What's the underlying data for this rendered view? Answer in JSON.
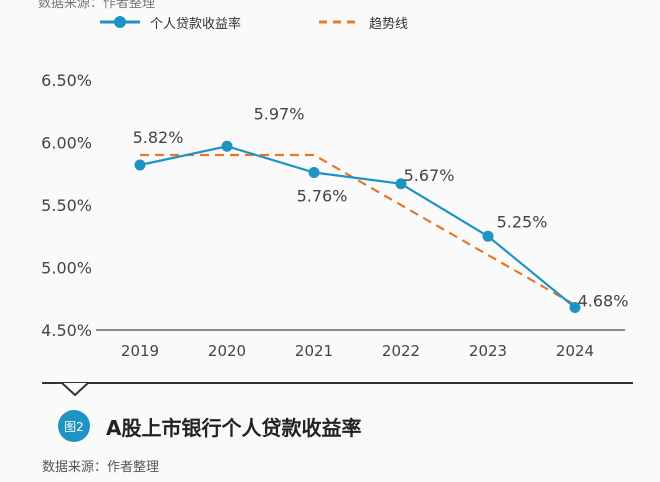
{
  "top_source": "数据来源：作者整理",
  "legend": {
    "series1": "个人贷款收益率",
    "series2": "趋势线"
  },
  "colors": {
    "series": "#1f93c3",
    "trend": "#e67826",
    "axis": "#666666",
    "grid": "#cccccc"
  },
  "chart_data": {
    "type": "line",
    "categories": [
      "2019",
      "2020",
      "2021",
      "2022",
      "2023",
      "2024"
    ],
    "series": [
      {
        "name": "个人贷款收益率",
        "values": [
          5.82,
          5.97,
          5.76,
          5.67,
          5.25,
          4.68
        ]
      },
      {
        "name": "趋势线",
        "values": [
          5.9,
          5.9,
          5.9,
          5.5,
          5.1,
          4.7
        ]
      }
    ],
    "data_labels": [
      "5.82%",
      "5.97%",
      "5.76%",
      "5.67%",
      "5.25%",
      "4.68%"
    ],
    "y_ticks": [
      "6.50%",
      "6.00%",
      "5.50%",
      "5.00%",
      "4.50%"
    ],
    "y_tick_values": [
      6.5,
      6.0,
      5.5,
      5.0,
      4.5
    ],
    "ylim": [
      4.5,
      6.5
    ],
    "grid": false,
    "legend_position": "top"
  },
  "caption": {
    "badge": "图2",
    "title": "A股上市银行个人贷款收益率"
  },
  "bottom_source": "数据来源：作者整理"
}
